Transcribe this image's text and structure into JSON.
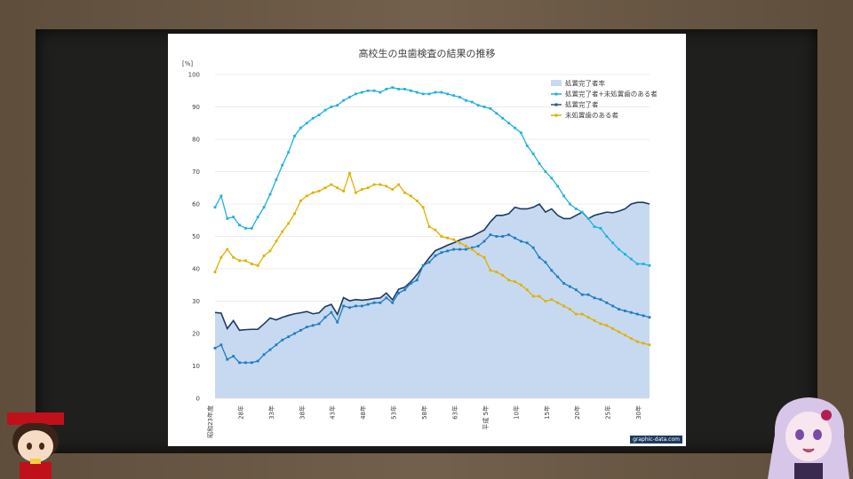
{
  "chart_data": {
    "type": "line",
    "title": "高校生の虫歯検査の結果の推移",
    "ylabel": "[%]",
    "ylim": [
      0,
      100
    ],
    "yticks": [
      0,
      10,
      20,
      30,
      40,
      50,
      60,
      70,
      80,
      90,
      100
    ],
    "xtick_labels": [
      "昭和23年度",
      "28年",
      "33年",
      "38年",
      "43年",
      "48年",
      "53年",
      "58年",
      "63年",
      "平成 5年",
      "10年",
      "15年",
      "20年",
      "25年",
      "30年"
    ],
    "x": [
      1948,
      1949,
      1950,
      1951,
      1952,
      1953,
      1954,
      1955,
      1956,
      1957,
      1958,
      1959,
      1960,
      1961,
      1962,
      1963,
      1964,
      1965,
      1966,
      1967,
      1968,
      1969,
      1970,
      1971,
      1972,
      1973,
      1974,
      1975,
      1976,
      1977,
      1978,
      1979,
      1980,
      1981,
      1982,
      1983,
      1984,
      1985,
      1986,
      1987,
      1988,
      1989,
      1990,
      1991,
      1992,
      1993,
      1994,
      1995,
      1996,
      1997,
      1998,
      1999,
      2000,
      2001,
      2002,
      2003,
      2004,
      2005,
      2006,
      2007,
      2008,
      2009,
      2010,
      2011,
      2012,
      2013,
      2014,
      2015,
      2016,
      2017,
      2018,
      2019
    ],
    "legend": [
      "処置完了者率",
      "処置完了者+未処置歯のある者",
      "処置完了者",
      "未処置歯のある者"
    ],
    "series": [
      {
        "name": "処置完了者率",
        "type": "area",
        "color": "#c6d9f0",
        "values": [
          26.5,
          26.3,
          21.5,
          24.0,
          21.0,
          21.2,
          21.3,
          21.3,
          23.0,
          24.8,
          24.2,
          25.0,
          25.6,
          26.1,
          26.4,
          26.8,
          26.1,
          26.4,
          28.3,
          29.0,
          25.9,
          31.1,
          30.1,
          30.5,
          30.3,
          30.5,
          30.8,
          31.0,
          32.5,
          30.4,
          33.7,
          34.3,
          36.0,
          38.2,
          40.9,
          43.4,
          45.6,
          46.4,
          47.3,
          48.0,
          48.9,
          49.5,
          50.0,
          51.0,
          52.0,
          54.5,
          56.5,
          56.5,
          57.0,
          59.0,
          58.5,
          58.5,
          59.0,
          60.0,
          57.5,
          58.5,
          56.5,
          55.5,
          55.5,
          56.5,
          57.5,
          55.5,
          56.5,
          57.0,
          57.5,
          57.3,
          57.8,
          58.5,
          60.0,
          60.5,
          60.5,
          60.0
        ]
      },
      {
        "name": "処置完了者+未処置歯のある者",
        "type": "line",
        "color": "#1fb2e0",
        "values": [
          59.0,
          62.5,
          55.5,
          56.0,
          53.5,
          52.5,
          52.5,
          56.0,
          59.0,
          63.0,
          67.5,
          72.0,
          76.0,
          81.0,
          83.5,
          85.0,
          86.5,
          87.5,
          89.0,
          90.0,
          90.5,
          92.0,
          93.0,
          94.0,
          94.5,
          95.0,
          95.0,
          94.5,
          95.5,
          96.0,
          95.5,
          95.5,
          95.0,
          94.5,
          94.0,
          94.0,
          94.5,
          94.5,
          94.0,
          93.5,
          93.0,
          92.0,
          91.5,
          90.5,
          90.0,
          89.5,
          88.0,
          86.5,
          85.0,
          83.5,
          82.0,
          78.0,
          75.5,
          72.5,
          70.0,
          68.0,
          65.5,
          62.5,
          60.0,
          58.5,
          57.5,
          55.5,
          53.0,
          52.5,
          50.0,
          48.0,
          46.0,
          44.5,
          43.0,
          41.5,
          41.5,
          41.0
        ]
      },
      {
        "name": "処置完了者",
        "type": "line",
        "color": "#1f7cc1",
        "values": [
          15.5,
          16.5,
          12.0,
          13.0,
          11.0,
          11.0,
          11.0,
          11.5,
          13.5,
          15.0,
          16.5,
          18.0,
          19.0,
          20.0,
          21.0,
          22.0,
          22.5,
          23.0,
          25.0,
          26.5,
          23.5,
          28.5,
          28.0,
          28.5,
          28.5,
          29.0,
          29.5,
          29.5,
          31.0,
          29.5,
          32.5,
          33.5,
          35.5,
          36.5,
          41.0,
          42.0,
          44.0,
          45.0,
          45.5,
          46.0,
          46.0,
          46.0,
          46.5,
          47.0,
          48.5,
          50.5,
          50.0,
          50.0,
          50.5,
          49.5,
          48.5,
          48.0,
          46.5,
          43.5,
          42.0,
          39.5,
          37.5,
          35.5,
          34.5,
          33.5,
          32.0,
          32.0,
          31.0,
          30.5,
          29.5,
          28.5,
          27.5,
          27.0,
          26.5,
          26.0,
          25.5,
          25.0
        ]
      },
      {
        "name": "未処置歯のある者",
        "type": "line",
        "color": "#e0b000",
        "values": [
          39.0,
          43.5,
          46.0,
          43.5,
          42.5,
          42.5,
          41.5,
          41.0,
          44.0,
          45.5,
          48.5,
          51.5,
          54.0,
          57.0,
          61.0,
          62.5,
          63.5,
          64.0,
          65.0,
          66.0,
          65.0,
          64.0,
          69.5,
          63.5,
          64.5,
          65.0,
          66.0,
          66.0,
          65.5,
          64.5,
          66.0,
          63.5,
          62.5,
          61.0,
          59.0,
          53.0,
          52.0,
          50.0,
          49.5,
          49.0,
          48.0,
          47.0,
          46.0,
          44.5,
          43.5,
          39.5,
          39.0,
          38.0,
          36.5,
          36.0,
          35.0,
          33.5,
          31.5,
          31.5,
          30.0,
          30.5,
          29.5,
          28.5,
          27.5,
          26.0,
          26.0,
          25.0,
          24.0,
          23.0,
          22.5,
          21.5,
          20.5,
          19.5,
          18.5,
          17.5,
          17.0,
          16.5
        ]
      }
    ]
  },
  "credit": "graphic-data.com"
}
